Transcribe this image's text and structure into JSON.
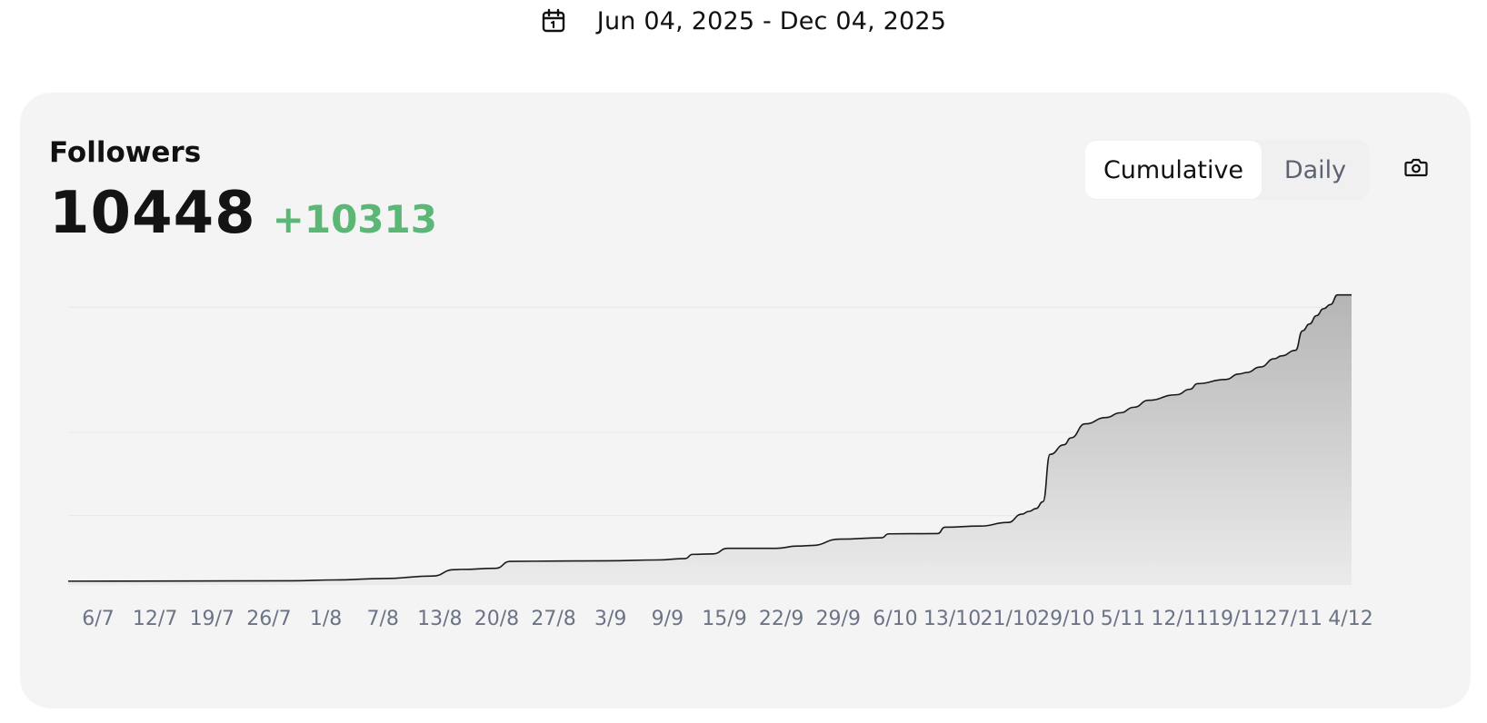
{
  "date_range": {
    "icon": "calendar-icon",
    "label": "Jun 04, 2025 - Dec 04, 2025"
  },
  "card": {
    "title": "Followers",
    "value": "10448",
    "delta": "+10313",
    "toggle": {
      "cumulative_label": "Cumulative",
      "daily_label": "Daily",
      "selected": "Cumulative"
    },
    "camera_icon": "camera-icon",
    "colors": {
      "delta": "#5ab775",
      "line": "#1a1a1a",
      "fill_top": "#b5b5b5",
      "fill_bottom": "#ebebeb"
    }
  },
  "chart_data": {
    "type": "area",
    "xlabel": "",
    "ylabel": "",
    "grid": true,
    "x_ticks": [
      "6/7",
      "12/7",
      "19/7",
      "26/7",
      "1/8",
      "7/8",
      "13/8",
      "20/8",
      "27/8",
      "3/9",
      "9/9",
      "15/9",
      "22/9",
      "29/9",
      "6/10",
      "13/10",
      "21/10",
      "29/10",
      "5/11",
      "12/11",
      "19/11",
      "27/11",
      "4/12"
    ],
    "ylim": [
      0,
      10600
    ],
    "series": [
      {
        "x": [
          "4/6",
          "6/7",
          "12/7",
          "19/7",
          "26/7",
          "29/7",
          "30/7",
          "4/8",
          "6/8",
          "13/8",
          "20/8",
          "27/8",
          "31/8",
          "1/9",
          "4/9",
          "6/9",
          "13/9",
          "16/9",
          "18/9",
          "22/9",
          "28/9",
          "29/9",
          "6/10",
          "7/10",
          "12/10",
          "16/10",
          "18/10",
          "19/10",
          "20/10",
          "21/10",
          "22/10",
          "24/10",
          "25/10",
          "27/10",
          "30/10",
          "1/11",
          "3/11",
          "5/11",
          "9/11",
          "11/11",
          "12/11",
          "16/11",
          "18/11",
          "19/11",
          "21/11",
          "23/11",
          "24/11",
          "26/11",
          "27/11",
          "28/11",
          "29/11",
          "30/11",
          "1/12",
          "2/12",
          "4/12"
        ],
        "y": [
          135,
          150,
          180,
          230,
          320,
          550,
          560,
          600,
          850,
          860,
          870,
          900,
          950,
          1100,
          1120,
          1320,
          1320,
          1400,
          1420,
          1650,
          1700,
          1840,
          1850,
          2080,
          2120,
          2250,
          2550,
          2650,
          2750,
          3000,
          4700,
          5050,
          5300,
          5800,
          6030,
          6200,
          6400,
          6650,
          6850,
          7050,
          7250,
          7400,
          7600,
          7650,
          7850,
          8150,
          8250,
          8450,
          9150,
          9400,
          9700,
          9950,
          10100,
          10448,
          10448
        ]
      }
    ]
  }
}
